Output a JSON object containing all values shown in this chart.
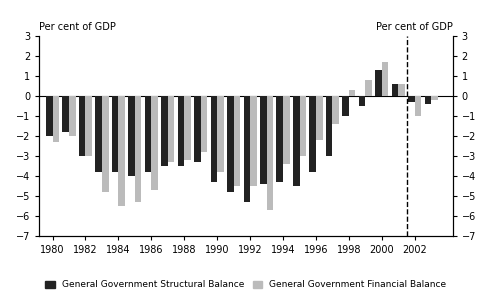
{
  "years": [
    1980,
    1981,
    1982,
    1983,
    1984,
    1985,
    1986,
    1987,
    1988,
    1989,
    1990,
    1991,
    1992,
    1993,
    1994,
    1995,
    1996,
    1997,
    1998,
    1999,
    2000,
    2001,
    2002,
    2003
  ],
  "structural": [
    -2.0,
    -1.8,
    -3.0,
    -3.8,
    -3.8,
    -4.0,
    -3.8,
    -3.5,
    -3.5,
    -3.3,
    -4.3,
    -4.8,
    -5.3,
    -4.4,
    -4.3,
    -4.5,
    -3.8,
    -3.0,
    -1.0,
    -0.5,
    1.3,
    0.6,
    -0.3,
    -0.4
  ],
  "financial": [
    -2.3,
    -2.0,
    -3.0,
    -4.8,
    -5.5,
    -5.3,
    -4.7,
    -3.3,
    -3.2,
    -2.8,
    -3.8,
    -4.5,
    -4.5,
    -5.7,
    -3.4,
    -3.0,
    -2.2,
    -1.4,
    0.3,
    0.8,
    1.7,
    0.6,
    -1.0,
    -0.2
  ],
  "structural_color": "#222222",
  "financial_color": "#bbbbbb",
  "dashed_line_x": 2001.5,
  "ylim": [
    -7,
    3
  ],
  "yticks": [
    -7,
    -6,
    -5,
    -4,
    -3,
    -2,
    -1,
    0,
    1,
    2,
    3
  ],
  "ylabel_left": "Per cent of GDP",
  "ylabel_right": "Per cent of GDP",
  "legend_structural": "General Government Structural Balance",
  "legend_financial": "General Government Financial Balance",
  "bg_color": "#ffffff",
  "bar_width": 0.4,
  "xtick_years": [
    1980,
    1982,
    1984,
    1986,
    1988,
    1990,
    1992,
    1994,
    1996,
    1998,
    2000,
    2002
  ],
  "xlim_left": 1979.2,
  "xlim_right": 2004.3
}
